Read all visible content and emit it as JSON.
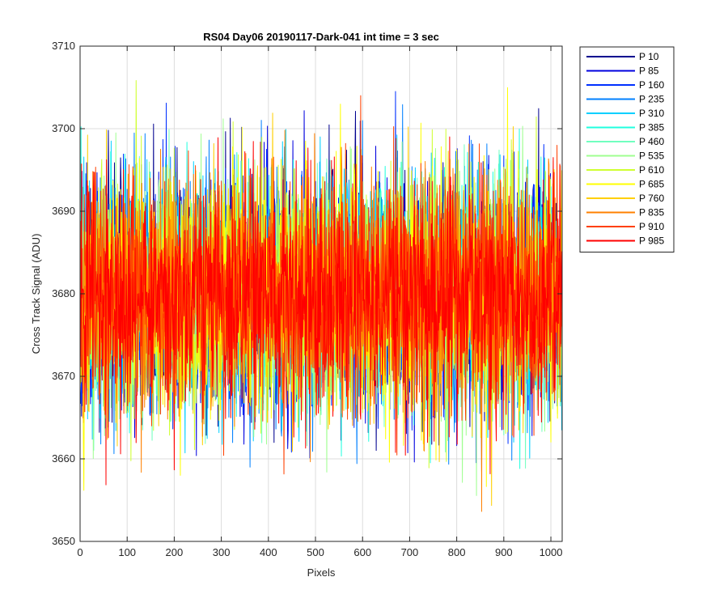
{
  "chart_data": {
    "type": "line",
    "title": "RS04 Day06 20190117-Dark-041 int time = 3 sec",
    "xlabel": "Pixels",
    "ylabel": "Cross Track Signal (ADU)",
    "xlim": [
      0,
      1024
    ],
    "ylim": [
      3650,
      3710
    ],
    "xticks": [
      0,
      100,
      200,
      300,
      400,
      500,
      600,
      700,
      800,
      900,
      1000
    ],
    "yticks": [
      3650,
      3660,
      3670,
      3680,
      3690,
      3700,
      3710
    ],
    "grid": true,
    "legend_position": "outside-right",
    "noise": {
      "mean": 3680,
      "sigma": 7,
      "min": 3650,
      "max": 3710
    },
    "series": [
      {
        "name": "P 10",
        "color": "#00008f"
      },
      {
        "name": "P 85",
        "color": "#0000df"
      },
      {
        "name": "P 160",
        "color": "#0030ff"
      },
      {
        "name": "P 235",
        "color": "#0080ff"
      },
      {
        "name": "P 310",
        "color": "#00cfff"
      },
      {
        "name": "P 385",
        "color": "#20ffdf"
      },
      {
        "name": "P 460",
        "color": "#70ffbf"
      },
      {
        "name": "P 535",
        "color": "#9fff90"
      },
      {
        "name": "P 610",
        "color": "#cfff30"
      },
      {
        "name": "P 685",
        "color": "#ffff00"
      },
      {
        "name": "P 760",
        "color": "#ffcf00"
      },
      {
        "name": "P 835",
        "color": "#ff8000"
      },
      {
        "name": "P 910",
        "color": "#ff4000"
      },
      {
        "name": "P 985",
        "color": "#ff0000"
      }
    ]
  }
}
